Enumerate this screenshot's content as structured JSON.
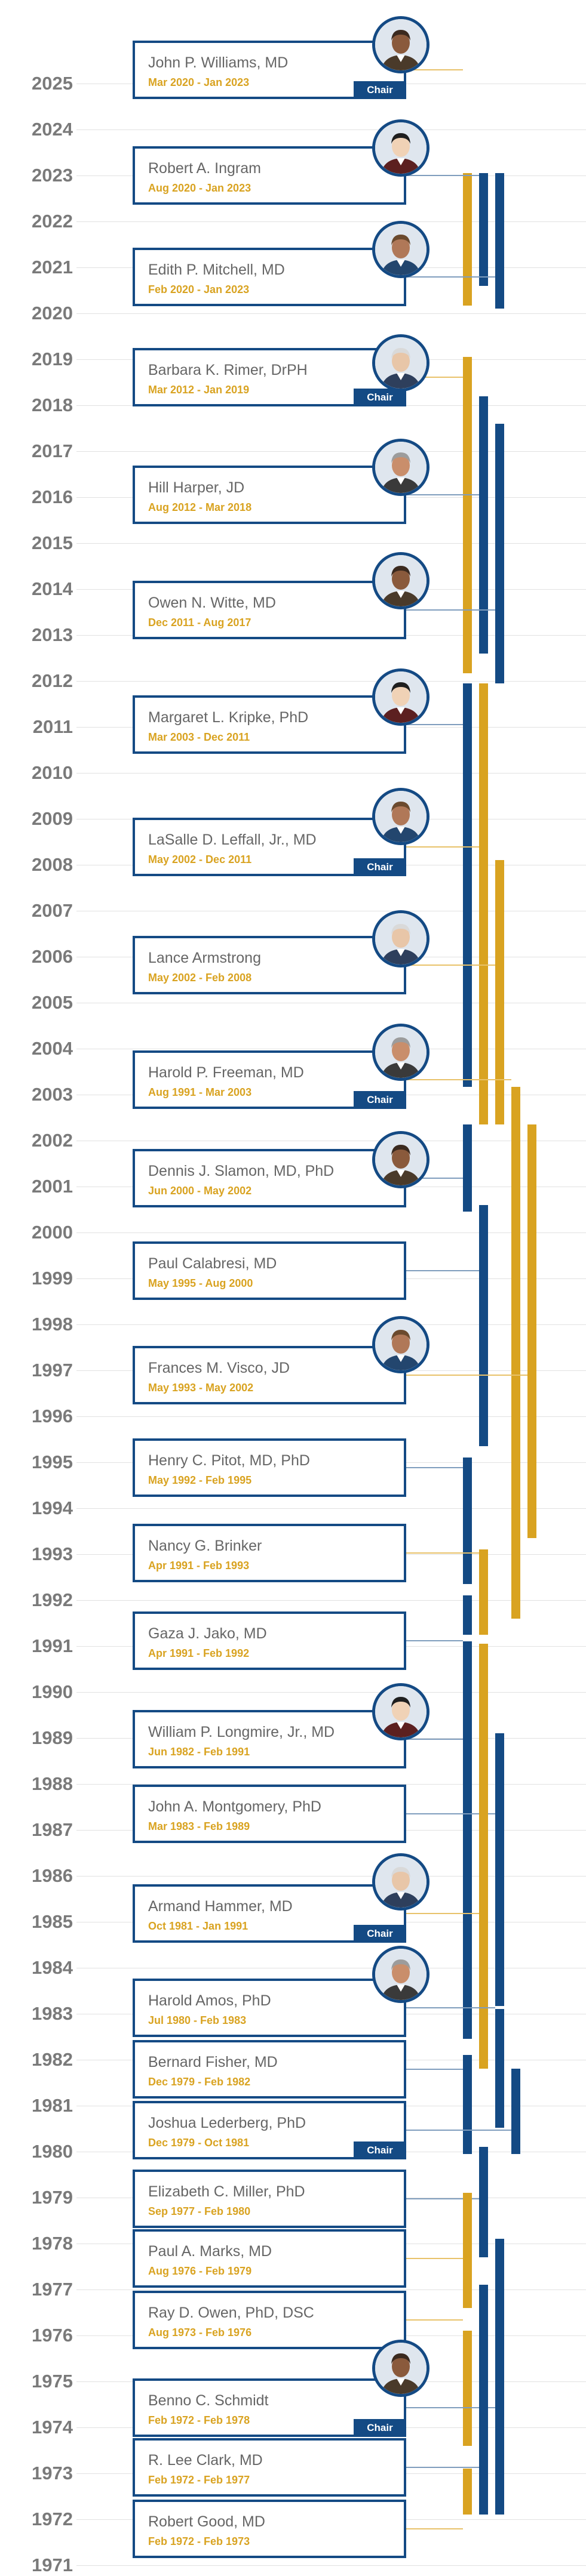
{
  "colors": {
    "navy": "#144a84",
    "gold": "#d9a321",
    "connector_gold": "#e8c26a",
    "connector_navy": "#7f9dbd",
    "year_text": "#7a7a7a",
    "grid": "#e1e1e1",
    "name_text": "#666666"
  },
  "timeline": {
    "start_year": 2025,
    "end_year": 1971,
    "years": [
      "2025",
      "2024",
      "2023",
      "2022",
      "2021",
      "2020",
      "2019",
      "2018",
      "2017",
      "2016",
      "2015",
      "2014",
      "2013",
      "2012",
      "2011",
      "2010",
      "2009",
      "2008",
      "2007",
      "2006",
      "2005",
      "2004",
      "2003",
      "2002",
      "2001",
      "2000",
      "1999",
      "1998",
      "1997",
      "1996",
      "1995",
      "1994",
      "1993",
      "1992",
      "1991",
      "1990",
      "1989",
      "1988",
      "1987",
      "1986",
      "1985",
      "1984",
      "1983",
      "1982",
      "1981",
      "1980",
      "1979",
      "1978",
      "1977",
      "1976",
      "1975",
      "1974",
      "1973",
      "1972",
      "1971"
    ]
  },
  "members": [
    {
      "name": "John P. Williams, MD",
      "dates": "Mar 2020 - Jan 2023",
      "start": 2020.17,
      "end": 2023.05,
      "chair": true,
      "photo": true,
      "chair_label": "Chair",
      "bar_color": "gold"
    },
    {
      "name": "Robert A. Ingram",
      "dates": "Aug 2020 - Jan 2023",
      "start": 2020.6,
      "end": 2023.05,
      "chair": false,
      "photo": true,
      "bar_color": "navy"
    },
    {
      "name": "Edith P. Mitchell, MD",
      "dates": "Feb 2020 - Jan 2023",
      "start": 2020.1,
      "end": 2023.05,
      "chair": false,
      "photo": true,
      "bar_color": "navy"
    },
    {
      "name": "Barbara K. Rimer, DrPH",
      "dates": "Mar 2012 - Jan 2019",
      "start": 2012.17,
      "end": 2019.05,
      "chair": true,
      "photo": true,
      "chair_label": "Chair",
      "bar_color": "gold"
    },
    {
      "name": "Hill Harper, JD",
      "dates": "Aug 2012 - Mar 2018",
      "start": 2012.6,
      "end": 2018.2,
      "chair": false,
      "photo": true,
      "bar_color": "navy"
    },
    {
      "name": "Owen N. Witte, MD",
      "dates": "Dec 2011 - Aug 2017",
      "start": 2011.95,
      "end": 2017.6,
      "chair": false,
      "photo": true,
      "bar_color": "navy"
    },
    {
      "name": "Margaret L.  Kripke, PhD",
      "dates": "Mar 2003 - Dec 2011",
      "start": 2003.17,
      "end": 2011.95,
      "chair": false,
      "photo": true,
      "bar_color": "navy"
    },
    {
      "name": "LaSalle D. Leffall, Jr., MD",
      "dates": "May 2002 - Dec 2011",
      "start": 2002.35,
      "end": 2011.95,
      "chair": true,
      "photo": true,
      "chair_label": "Chair",
      "bar_color": "gold"
    },
    {
      "name": "Lance Armstrong",
      "dates": "May 2002 - Feb 2008",
      "start": 2002.35,
      "end": 2008.1,
      "chair": false,
      "photo": true,
      "bar_color": "gold"
    },
    {
      "name": "Harold P. Freeman, MD",
      "dates": "Aug 1991 - Mar 2003",
      "start": 1991.6,
      "end": 2003.17,
      "chair": true,
      "photo": true,
      "chair_label": "Chair",
      "bar_color": "gold"
    },
    {
      "name": "Dennis J. Slamon, MD, PhD",
      "dates": "Jun 2000 - May 2002",
      "start": 2000.45,
      "end": 2002.35,
      "chair": false,
      "photo": true,
      "bar_color": "navy"
    },
    {
      "name": "Paul Calabresi, MD",
      "dates": "May 1995 - Aug 2000",
      "start": 1995.35,
      "end": 2000.6,
      "chair": false,
      "photo": false,
      "bar_color": "navy"
    },
    {
      "name": "Frances M. Visco, JD",
      "dates": "May 1993 - May 2002",
      "start": 1993.35,
      "end": 2002.35,
      "chair": false,
      "photo": true,
      "bar_color": "gold"
    },
    {
      "name": "Henry C. Pitot, MD, PhD",
      "dates": "May 1992 - Feb 1995",
      "start": 1992.35,
      "end": 1995.1,
      "chair": false,
      "photo": false,
      "bar_color": "navy"
    },
    {
      "name": "Nancy G. Brinker",
      "dates": "Apr 1991 - Feb 1993",
      "start": 1991.25,
      "end": 1993.1,
      "chair": false,
      "photo": false,
      "bar_color": "gold"
    },
    {
      "name": "Gaza J. Jako, MD",
      "dates": "Apr 1991 - Feb 1992",
      "start": 1991.25,
      "end": 1992.1,
      "chair": false,
      "photo": false,
      "bar_color": "navy"
    },
    {
      "name": "William P. Longmire, Jr., MD",
      "dates": "Jun 1982 - Feb 1991",
      "start": 1982.45,
      "end": 1991.1,
      "chair": false,
      "photo": true,
      "bar_color": "navy"
    },
    {
      "name": "John A. Montgomery, PhD",
      "dates": "Mar 1983 - Feb 1989",
      "start": 1983.17,
      "end": 1989.1,
      "chair": false,
      "photo": false,
      "bar_color": "navy"
    },
    {
      "name": "Armand Hammer, MD",
      "dates": "Oct 1981 - Jan 1991",
      "start": 1981.8,
      "end": 1991.05,
      "chair": true,
      "photo": true,
      "chair_label": "Chair",
      "bar_color": "gold"
    },
    {
      "name": "Harold Amos, PhD",
      "dates": "Jul 1980 - Feb 1983",
      "start": 1980.52,
      "end": 1983.1,
      "chair": false,
      "photo": true,
      "bar_color": "navy"
    },
    {
      "name": "Bernard Fisher, MD",
      "dates": "Dec 1979 - Feb 1982",
      "start": 1979.95,
      "end": 1982.1,
      "chair": false,
      "photo": false,
      "bar_color": "navy"
    },
    {
      "name": "Joshua Lederberg, PhD",
      "dates": "Dec 1979 - Oct 1981",
      "start": 1979.95,
      "end": 1981.8,
      "chair": true,
      "photo": false,
      "chair_label": "Chair",
      "bar_color": "navy"
    },
    {
      "name": "Elizabeth C. Miller, PhD",
      "dates": "Sep 1977 - Feb 1980",
      "start": 1977.7,
      "end": 1980.1,
      "chair": false,
      "photo": false,
      "bar_color": "navy"
    },
    {
      "name": "Paul A. Marks, MD",
      "dates": "Aug 1976 - Feb 1979",
      "start": 1976.6,
      "end": 1979.1,
      "chair": false,
      "photo": false,
      "bar_color": "gold"
    },
    {
      "name": "Ray D. Owen, PhD, DSC",
      "dates": "Aug 1973 - Feb 1976",
      "start": 1973.6,
      "end": 1976.1,
      "chair": false,
      "photo": false,
      "bar_color": "gold"
    },
    {
      "name": "Benno C. Schmidt",
      "dates": "Feb 1972 - Feb 1978",
      "start": 1972.1,
      "end": 1978.1,
      "chair": true,
      "photo": true,
      "chair_label": "Chair",
      "bar_color": "navy"
    },
    {
      "name": "R. Lee Clark, MD",
      "dates": "Feb 1972 - Feb 1977",
      "start": 1972.1,
      "end": 1977.1,
      "chair": false,
      "photo": false,
      "bar_color": "navy"
    },
    {
      "name": "Robert Good, MD",
      "dates": "Feb 1972 - Feb 1973",
      "start": 1972.1,
      "end": 1973.1,
      "chair": false,
      "photo": false,
      "bar_color": "gold"
    }
  ]
}
